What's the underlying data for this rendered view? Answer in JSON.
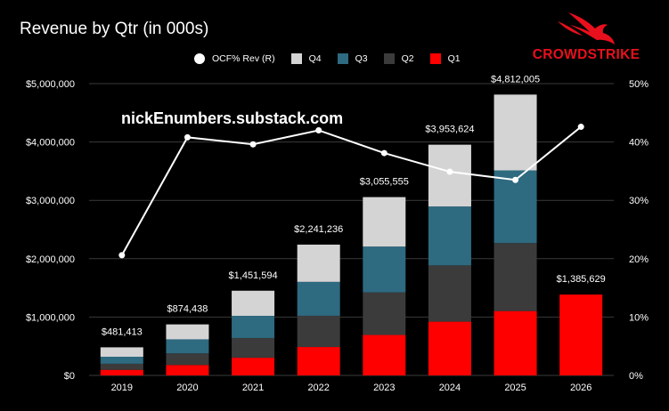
{
  "title": "Revenue by Qtr (in 000s)",
  "watermark": "nickEnumbers.substack.com",
  "logo_text": "CROWDSTRIKE",
  "colors": {
    "Q1": "#ff0000",
    "Q2": "#3b3b3b",
    "Q3": "#2e6a80",
    "Q4": "#d4d4d4",
    "line": "#ffffff",
    "brand": "#e8101c"
  },
  "legend": [
    {
      "key": "ocf",
      "label": "OCF% Rev (R)"
    },
    {
      "key": "Q4",
      "label": "Q4"
    },
    {
      "key": "Q3",
      "label": "Q3"
    },
    {
      "key": "Q2",
      "label": "Q2"
    },
    {
      "key": "Q1",
      "label": "Q1"
    }
  ],
  "chart_data": {
    "type": "bar",
    "stacked": true,
    "title": "Revenue by Qtr (in 000s)",
    "categories": [
      "2019",
      "2020",
      "2021",
      "2022",
      "2023",
      "2024",
      "2025",
      "2026"
    ],
    "series": [
      {
        "name": "Q1",
        "values": [
          96000,
          178000,
          303000,
          487000,
          693000,
          921000,
          1103000,
          1385629
        ]
      },
      {
        "name": "Q2",
        "values": [
          104000,
          200000,
          338000,
          535000,
          729000,
          964000,
          1165000,
          null
        ]
      },
      {
        "name": "Q3",
        "values": [
          120000,
          240000,
          380000,
          581000,
          786000,
          1010000,
          1245000,
          null
        ]
      },
      {
        "name": "Q4",
        "values": [
          161413,
          256438,
          430594,
          638236,
          847555,
          1058624,
          1299005,
          null
        ]
      }
    ],
    "totals": [
      481413,
      874438,
      1451594,
      2241236,
      3055555,
      3953624,
      4812005,
      1385629
    ],
    "total_labels": [
      "$481,413",
      "$874,438",
      "$1,451,594",
      "$2,241,236",
      "$3,055,555",
      "$3,953,624",
      "$4,812,005",
      "$1,385,629"
    ],
    "line_series": {
      "name": "OCF% Rev (R)",
      "axis": "right",
      "values": [
        20.6,
        40.8,
        39.6,
        42.0,
        38.1,
        34.9,
        33.5,
        42.6
      ]
    },
    "ylim_left": [
      0,
      5000000
    ],
    "ylim_right": [
      0,
      50
    ],
    "yticks_left": [
      "$0",
      "$1,000,000",
      "$2,000,000",
      "$3,000,000",
      "$4,000,000",
      "$5,000,000"
    ],
    "yticks_right": [
      "0%",
      "10%",
      "20%",
      "30%",
      "40%",
      "50%"
    ],
    "grid": true,
    "legend_position": "top"
  }
}
